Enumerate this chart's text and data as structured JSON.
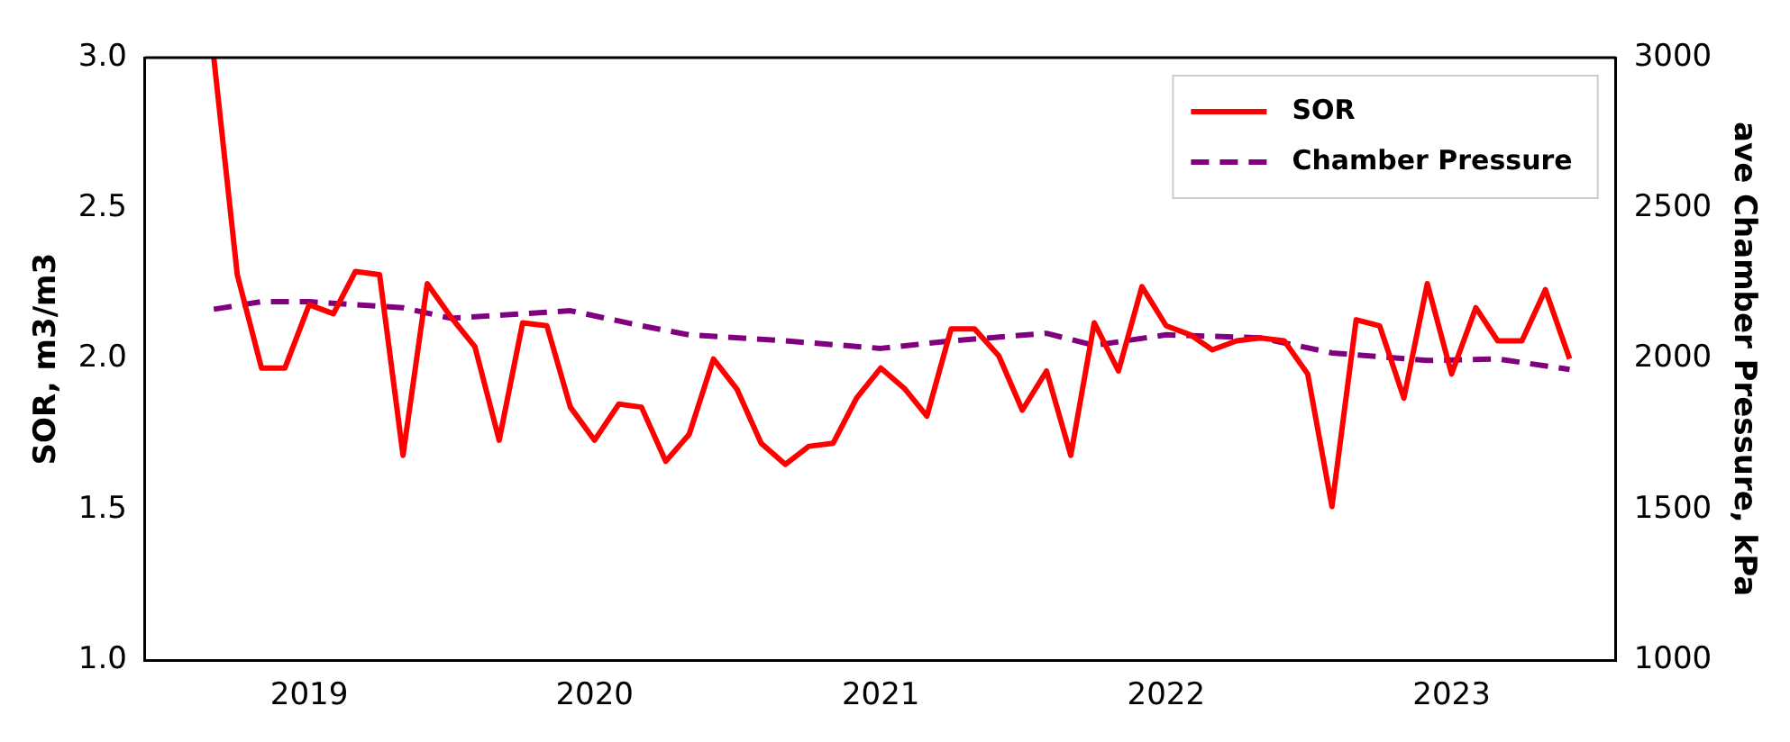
{
  "chart_data": {
    "type": "line",
    "ylabel": "SOR, m3/m3",
    "y2label": "ave Chamber Pressure, kPa",
    "xlim": [
      "2018-06-05",
      "2023-07-30"
    ],
    "xticks": [
      "2019",
      "2020",
      "2021",
      "2022",
      "2023"
    ],
    "ylim": [
      1,
      3
    ],
    "yticks": [
      {
        "value": 1,
        "label": "1.0"
      },
      {
        "value": 1.5,
        "label": "1.5"
      },
      {
        "value": 2,
        "label": "2.0"
      },
      {
        "value": 2.5,
        "label": "2.5"
      },
      {
        "value": 3,
        "label": "3.0"
      }
    ],
    "y2lim": [
      1000,
      3000
    ],
    "y2ticks": [
      1000,
      1500,
      2000,
      2500,
      3000
    ],
    "grid": false,
    "legend": "top right",
    "series": [
      {
        "name": "SOR",
        "color": "#ff0000",
        "line_style": "solid",
        "x": [
          "2018-09",
          "2018-10",
          "2018-11",
          "2018-12",
          "2019-01",
          "2019-02",
          "2019-03",
          "2019-04",
          "2019-05",
          "2019-06",
          "2019-07",
          "2019-08",
          "2019-09",
          "2019-10",
          "2019-11",
          "2019-12",
          "2020-01",
          "2020-02",
          "2020-03",
          "2020-04",
          "2020-05",
          "2020-06",
          "2020-07",
          "2020-08",
          "2020-09",
          "2020-10",
          "2020-11",
          "2020-12",
          "2021-01",
          "2021-02",
          "2021-03",
          "2021-04",
          "2021-05",
          "2021-06",
          "2021-07",
          "2021-08",
          "2021-09",
          "2021-10",
          "2021-11",
          "2021-12",
          "2022-01",
          "2022-02",
          "2022-03",
          "2022-04",
          "2022-05",
          "2022-06",
          "2022-07",
          "2022-08",
          "2022-09",
          "2022-10",
          "2022-11",
          "2022-12",
          "2023-01",
          "2023-02",
          "2023-03",
          "2023-04",
          "2023-05",
          "2023-06"
        ],
        "values": [
          3.0,
          2.28,
          1.97,
          1.97,
          2.18,
          2.15,
          2.29,
          2.28,
          1.68,
          2.25,
          2.14,
          2.04,
          1.73,
          2.12,
          2.11,
          1.84,
          1.73,
          1.85,
          1.84,
          1.66,
          1.75,
          2.0,
          1.9,
          1.72,
          1.65,
          1.71,
          1.72,
          1.87,
          1.97,
          1.9,
          1.81,
          2.1,
          2.1,
          2.01,
          1.83,
          1.96,
          1.68,
          2.12,
          1.96,
          2.24,
          2.11,
          2.08,
          2.03,
          2.06,
          2.07,
          2.06,
          1.95,
          1.51,
          2.13,
          2.11,
          1.87,
          2.25,
          1.95,
          2.17,
          2.06,
          2.06,
          2.23,
          2.0
        ]
      },
      {
        "name": "Chamber Pressure",
        "color": "#800080",
        "line_style": "dashed",
        "axis": "y2",
        "x": [
          "2018-09",
          "2018-11",
          "2019-01",
          "2019-03",
          "2019-05",
          "2019-07",
          "2019-10",
          "2019-12",
          "2020-03",
          "2020-05",
          "2020-09",
          "2021-01",
          "2021-04",
          "2021-08",
          "2021-10",
          "2022-01",
          "2022-05",
          "2022-08",
          "2022-12",
          "2023-03",
          "2023-06"
        ],
        "values": [
          2165,
          2190,
          2190,
          2180,
          2170,
          2135,
          2150,
          2160,
          2110,
          2080,
          2060,
          2035,
          2060,
          2085,
          2045,
          2080,
          2070,
          2020,
          1995,
          2000,
          1965
        ]
      }
    ]
  }
}
